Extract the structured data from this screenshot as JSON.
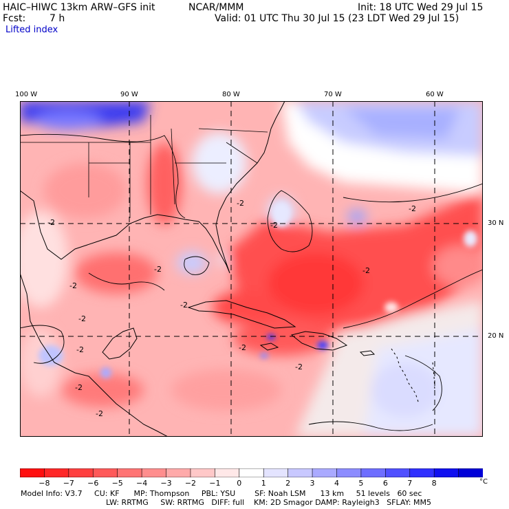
{
  "header": {
    "model": "HAIC–HIWC 13km ARW–GFS init",
    "center": "NCAR/MMM",
    "init": "Init: 18 UTC Wed 29 Jul 15",
    "fcst_label": "Fcst:",
    "fcst_value": "7 h",
    "valid": "Valid: 01 UTC Thu 30 Jul 15 (23 LDT Wed 29 Jul 15)",
    "field": "Lifted index"
  },
  "map": {
    "lon_labels": [
      "100 W",
      "90 W",
      "80 W",
      "70 W",
      "60 W"
    ],
    "lat_labels": [
      "30 N",
      "20 N"
    ],
    "contour_labels": [
      "-2",
      "-2",
      "-2",
      "-2",
      "-2",
      "-2",
      "-2",
      "-2",
      "-2",
      "-2",
      "-2",
      "-2",
      "-2",
      "-2"
    ]
  },
  "colorbar": {
    "labels": [
      "−8",
      "−7",
      "−6",
      "−5",
      "−4",
      "−3",
      "−2",
      "−1",
      "0",
      "1",
      "2",
      "3",
      "4",
      "5",
      "6",
      "7",
      "8"
    ],
    "unit": "°C",
    "colors": [
      "#ff1010",
      "#ff2828",
      "#ff4040",
      "#ff5a5a",
      "#ff7474",
      "#ff8e8e",
      "#ffaaaa",
      "#ffc8c8",
      "#ffe8e8",
      "#ffffff",
      "#e4e4ff",
      "#c8c8ff",
      "#aaaaff",
      "#8c8cff",
      "#6e6eff",
      "#5050ff",
      "#3030ff",
      "#1010f0",
      "#0000d8"
    ]
  },
  "model_info": {
    "line1": "Model Info: V3.7     CU: KF      MP: Thompson     PBL: YSU        SF: Noah LSM      13 km     51 levels   60 sec",
    "line2": "LW: RRTMG     SW: RRTMG   DIFF: full    KM: 2D Smagor DAMP: Rayleigh3   SFLAY: MM5"
  }
}
